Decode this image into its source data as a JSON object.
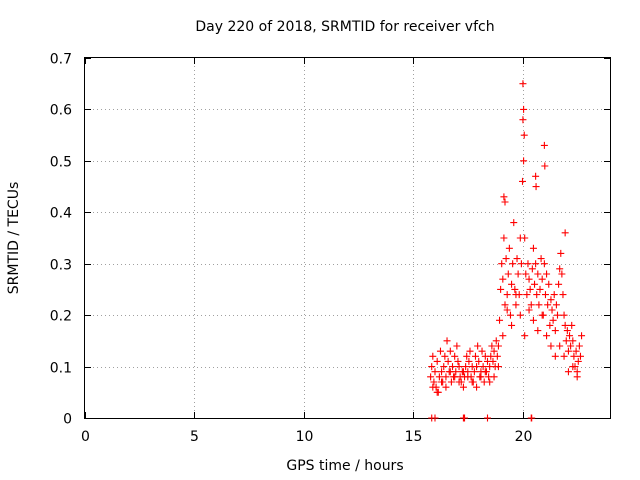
{
  "chart_data": {
    "type": "scatter",
    "title": "Day 220 of 2018, SRMTID for receiver vfch",
    "xlabel": "GPS time / hours",
    "ylabel": "SRMTID / TECUs",
    "xlim": [
      0,
      24
    ],
    "ylim": [
      0,
      0.7
    ],
    "xticks": [
      0,
      5,
      10,
      15,
      20
    ],
    "yticks": [
      0,
      0.1,
      0.2,
      0.3,
      0.4,
      0.5,
      0.6,
      0.7
    ],
    "xtick_labels": [
      "0",
      "5",
      "10",
      "15",
      "20"
    ],
    "ytick_labels": [
      "0",
      "0.1",
      "0.2",
      "0.3",
      "0.4",
      "0.5",
      "0.6",
      "0.7"
    ],
    "grid": true,
    "marker": "plus",
    "color": "#ff0000",
    "series": [
      {
        "name": "SRMTID",
        "x": [
          15.8,
          15.85,
          15.9,
          15.95,
          16.0,
          16.05,
          16.1,
          16.15,
          16.2,
          16.25,
          16.3,
          16.35,
          16.4,
          16.45,
          16.5,
          16.55,
          16.6,
          16.65,
          16.7,
          16.75,
          16.8,
          16.85,
          16.9,
          16.95,
          17.0,
          17.05,
          17.1,
          17.15,
          17.2,
          17.25,
          17.3,
          17.35,
          17.4,
          17.45,
          17.5,
          17.55,
          17.6,
          17.65,
          17.7,
          17.75,
          17.8,
          17.85,
          17.9,
          17.95,
          18.0,
          18.05,
          18.1,
          18.15,
          18.2,
          18.25,
          18.3,
          18.35,
          18.4,
          18.45,
          18.5,
          18.55,
          18.6,
          18.65,
          18.7,
          18.75,
          18.8,
          18.85,
          18.9,
          18.95,
          19.0,
          19.05,
          19.1,
          19.15,
          19.2,
          19.25,
          19.3,
          19.35,
          19.4,
          19.45,
          19.5,
          19.55,
          19.6,
          19.65,
          19.7,
          19.75,
          19.8,
          19.85,
          19.9,
          19.95,
          20.0,
          20.02,
          20.05,
          20.1,
          20.15,
          20.2,
          20.25,
          20.3,
          20.35,
          20.4,
          20.45,
          20.5,
          20.55,
          20.6,
          20.65,
          20.7,
          20.75,
          20.8,
          20.85,
          20.9,
          20.95,
          21.0,
          21.05,
          21.1,
          21.15,
          21.2,
          21.25,
          21.3,
          21.35,
          21.4,
          21.45,
          21.5,
          21.55,
          21.6,
          21.65,
          21.7,
          21.75,
          21.8,
          21.85,
          21.9,
          21.95,
          22.0,
          22.05,
          22.1,
          22.15,
          22.2,
          22.25,
          22.3,
          22.35,
          22.4,
          22.45,
          22.5,
          22.55,
          22.6,
          22.65,
          22.7,
          15.9,
          16.1,
          16.3,
          16.5,
          16.7,
          16.9,
          17.1,
          17.3,
          17.5,
          17.7,
          17.9,
          18.1,
          18.3,
          18.5,
          18.7,
          18.9,
          19.1,
          19.3,
          19.5,
          19.7,
          19.9,
          20.1,
          20.3,
          20.5,
          20.7,
          20.9,
          21.1,
          21.3,
          21.5,
          21.7,
          21.9,
          22.1,
          22.3,
          22.5,
          19.15,
          19.2,
          20.02,
          20.05,
          20.08,
          20.6,
          20.62,
          21.0,
          21.02,
          21.95,
          15.85,
          16.0,
          17.3,
          17.35,
          18.4,
          20.4,
          20.42
        ],
        "y": [
          0.08,
          0.1,
          0.12,
          0.07,
          0.09,
          0.06,
          0.11,
          0.05,
          0.08,
          0.13,
          0.09,
          0.07,
          0.1,
          0.12,
          0.08,
          0.15,
          0.11,
          0.09,
          0.13,
          0.07,
          0.1,
          0.08,
          0.12,
          0.09,
          0.14,
          0.11,
          0.1,
          0.08,
          0.07,
          0.09,
          0.06,
          0.08,
          0.1,
          0.12,
          0.09,
          0.11,
          0.13,
          0.08,
          0.1,
          0.07,
          0.09,
          0.12,
          0.1,
          0.14,
          0.11,
          0.08,
          0.09,
          0.13,
          0.1,
          0.07,
          0.12,
          0.09,
          0.11,
          0.08,
          0.1,
          0.12,
          0.14,
          0.11,
          0.13,
          0.1,
          0.15,
          0.12,
          0.14,
          0.19,
          0.25,
          0.3,
          0.27,
          0.35,
          0.22,
          0.31,
          0.24,
          0.28,
          0.33,
          0.2,
          0.26,
          0.3,
          0.38,
          0.25,
          0.22,
          0.31,
          0.28,
          0.24,
          0.35,
          0.3,
          0.46,
          0.58,
          0.5,
          0.35,
          0.28,
          0.24,
          0.3,
          0.27,
          0.25,
          0.22,
          0.29,
          0.33,
          0.26,
          0.3,
          0.24,
          0.28,
          0.22,
          0.25,
          0.31,
          0.27,
          0.2,
          0.3,
          0.24,
          0.28,
          0.22,
          0.26,
          0.18,
          0.23,
          0.21,
          0.19,
          0.24,
          0.17,
          0.22,
          0.2,
          0.26,
          0.29,
          0.32,
          0.28,
          0.24,
          0.2,
          0.18,
          0.15,
          0.17,
          0.13,
          0.16,
          0.14,
          0.18,
          0.15,
          0.12,
          0.1,
          0.13,
          0.09,
          0.11,
          0.14,
          0.12,
          0.16,
          0.06,
          0.05,
          0.07,
          0.06,
          0.09,
          0.08,
          0.07,
          0.09,
          0.08,
          0.07,
          0.06,
          0.08,
          0.09,
          0.07,
          0.08,
          0.1,
          0.16,
          0.21,
          0.18,
          0.24,
          0.2,
          0.16,
          0.21,
          0.19,
          0.17,
          0.2,
          0.16,
          0.14,
          0.12,
          0.14,
          0.12,
          0.09,
          0.1,
          0.08,
          0.43,
          0.42,
          0.65,
          0.6,
          0.55,
          0.47,
          0.45,
          0.53,
          0.49,
          0.36,
          0.0,
          0.0,
          0.0,
          0.0,
          0.0,
          0.0,
          0.0
        ]
      }
    ]
  }
}
